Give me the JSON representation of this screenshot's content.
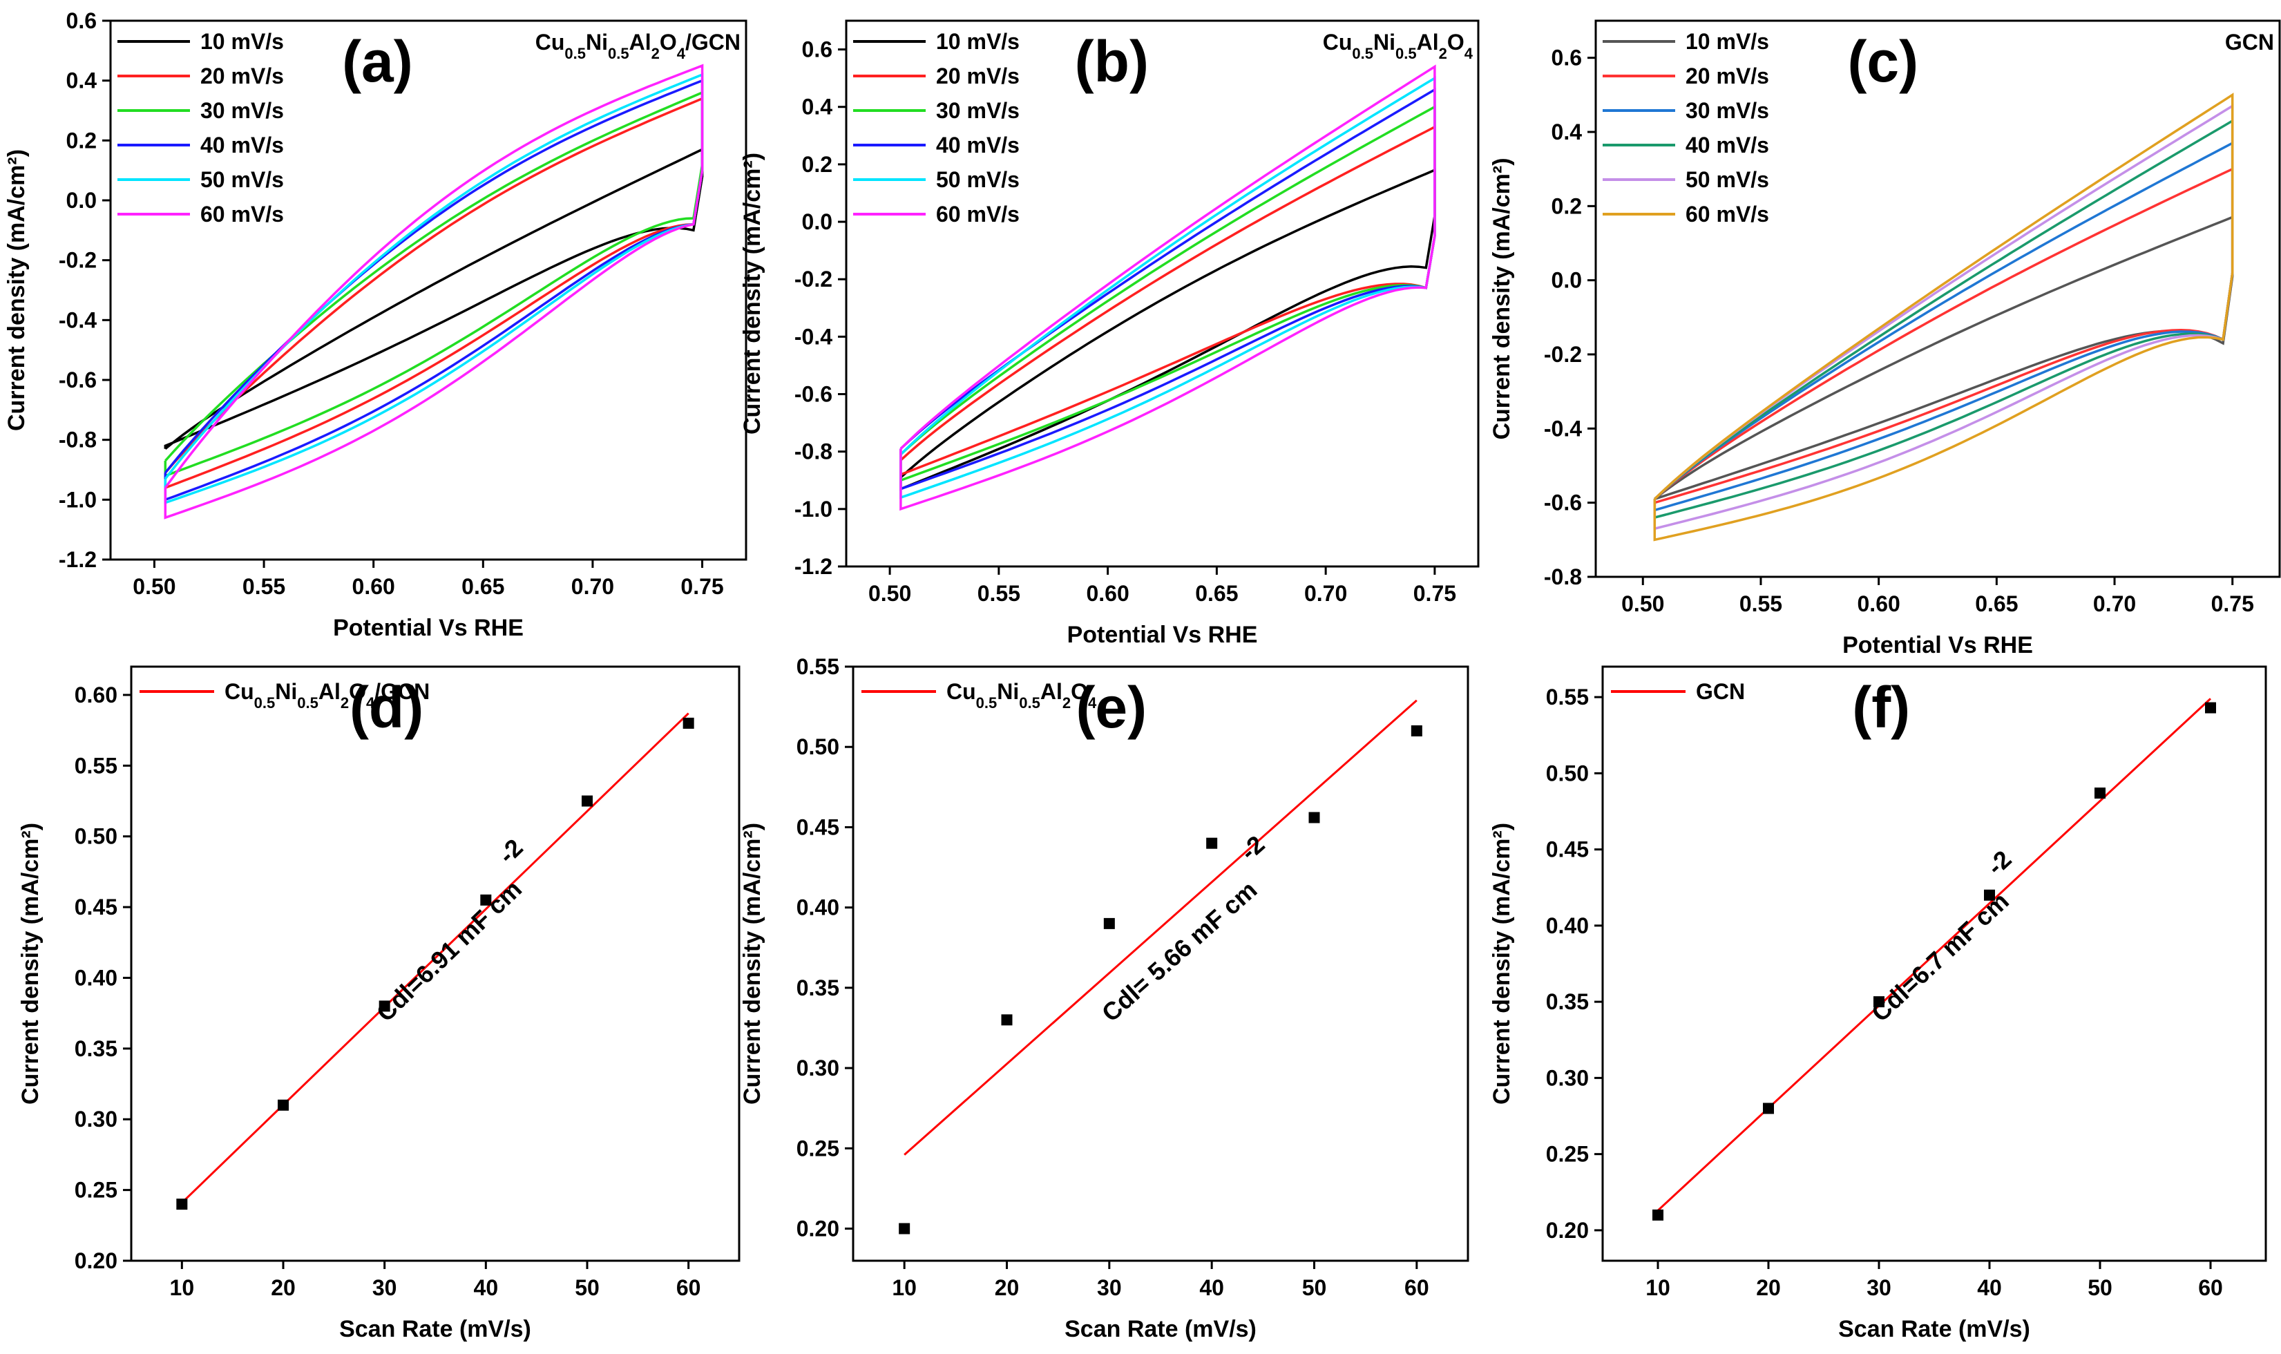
{
  "chart_data": [
    {
      "id": "a",
      "type": "line",
      "panel_label": "(a)",
      "sample_label": "Cu0.5Ni0.5Al2O4/GCN",
      "xlabel": "Potential Vs RHE",
      "ylabel": "Current density (mA/cm²)",
      "xlim": [
        0.48,
        0.77
      ],
      "ylim": [
        -1.2,
        0.6
      ],
      "xticks": [
        "0.50",
        "0.55",
        "0.60",
        "0.65",
        "0.70",
        "0.75"
      ],
      "yticks": [
        "-1.2",
        "-1.0",
        "-0.8",
        "-0.6",
        "-0.4",
        "-0.2",
        "0.0",
        "0.2",
        "0.4",
        "0.6"
      ],
      "legend_position": "top-left",
      "series": [
        {
          "name": "10 mV/s",
          "color": "#000000",
          "x0": 0.505,
          "x1": 0.75,
          "start_low": -0.82,
          "start_high": -0.8,
          "end_high": 0.17,
          "end_low": 0.08,
          "mid_high": -0.28,
          "mid_low": -0.42
        },
        {
          "name": "20 mV/s",
          "color": "#ff2020",
          "x0": 0.505,
          "x1": 0.75,
          "start_low": -0.96,
          "start_high": -0.88,
          "end_high": 0.34,
          "end_low": 0.1,
          "mid_high": -0.12,
          "mid_low": -0.55
        },
        {
          "name": "30 mV/s",
          "color": "#22dd22",
          "x0": 0.505,
          "x1": 0.75,
          "start_low": -0.92,
          "start_high": -0.84,
          "end_high": 0.36,
          "end_low": 0.12,
          "mid_high": -0.1,
          "mid_low": -0.52
        },
        {
          "name": "40 mV/s",
          "color": "#1a1aff",
          "x0": 0.505,
          "x1": 0.75,
          "start_low": -1.0,
          "start_high": -0.88,
          "end_high": 0.4,
          "end_low": 0.1,
          "mid_high": -0.06,
          "mid_low": -0.59
        },
        {
          "name": "50 mV/s",
          "color": "#00e5ff",
          "x0": 0.505,
          "x1": 0.75,
          "start_low": -1.01,
          "start_high": -0.9,
          "end_high": 0.42,
          "end_low": 0.1,
          "mid_high": -0.05,
          "mid_low": -0.61
        },
        {
          "name": "60 mV/s",
          "color": "#ff22ff",
          "x0": 0.505,
          "x1": 0.75,
          "start_low": -1.06,
          "start_high": -0.93,
          "end_high": 0.45,
          "end_low": 0.1,
          "mid_high": -0.02,
          "mid_low": -0.65
        }
      ]
    },
    {
      "id": "b",
      "type": "line",
      "panel_label": "(b)",
      "sample_label": "Cu0.5Ni0.5Al2O4",
      "xlabel": "Potential Vs RHE",
      "ylabel": "Current density (mA/cm²)",
      "xlim": [
        0.48,
        0.77
      ],
      "ylim": [
        -1.2,
        0.7
      ],
      "xticks": [
        "0.50",
        "0.55",
        "0.60",
        "0.65",
        "0.70",
        "0.75"
      ],
      "yticks": [
        "-1.2",
        "-1.0",
        "-0.8",
        "-0.6",
        "-0.4",
        "-0.2",
        "0.0",
        "0.2",
        "0.4",
        "0.6"
      ],
      "legend_position": "top-left",
      "series": [
        {
          "name": "10 mV/s",
          "color": "#000000",
          "x0": 0.505,
          "x1": 0.75,
          "start_low": -0.93,
          "start_high": -0.86,
          "end_high": 0.18,
          "end_low": 0.02,
          "mid_high": -0.26,
          "mid_low": -0.52
        },
        {
          "name": "20 mV/s",
          "color": "#ff2020",
          "x0": 0.505,
          "x1": 0.75,
          "start_low": -0.88,
          "start_high": -0.8,
          "end_high": 0.33,
          "end_low": -0.05,
          "mid_high": -0.18,
          "mid_low": -0.5
        },
        {
          "name": "30 mV/s",
          "color": "#22dd22",
          "x0": 0.505,
          "x1": 0.75,
          "start_low": -0.9,
          "start_high": -0.78,
          "end_high": 0.4,
          "end_low": -0.05,
          "mid_high": -0.14,
          "mid_low": -0.53
        },
        {
          "name": "40 mV/s",
          "color": "#1a1aff",
          "x0": 0.505,
          "x1": 0.75,
          "start_low": -0.93,
          "start_high": -0.76,
          "end_high": 0.46,
          "end_low": -0.05,
          "mid_high": -0.11,
          "mid_low": -0.56
        },
        {
          "name": "50 mV/s",
          "color": "#00e5ff",
          "x0": 0.505,
          "x1": 0.75,
          "start_low": -0.96,
          "start_high": -0.78,
          "end_high": 0.5,
          "end_low": -0.05,
          "mid_high": -0.09,
          "mid_low": -0.59
        },
        {
          "name": "60 mV/s",
          "color": "#ff22ff",
          "x0": 0.505,
          "x1": 0.75,
          "start_low": -1.0,
          "start_high": -0.76,
          "end_high": 0.54,
          "end_low": -0.05,
          "mid_high": -0.07,
          "mid_low": -0.63
        }
      ]
    },
    {
      "id": "c",
      "type": "line",
      "panel_label": "(c)",
      "sample_label": "GCN",
      "xlabel": "Potential Vs RHE",
      "ylabel": "Current density (mA/cm²)",
      "xlim": [
        0.48,
        0.77
      ],
      "ylim": [
        -0.8,
        0.7
      ],
      "xticks": [
        "0.50",
        "0.55",
        "0.60",
        "0.65",
        "0.70",
        "0.75"
      ],
      "yticks": [
        "-0.8",
        "-0.6",
        "-0.4",
        "-0.2",
        "0.0",
        "0.2",
        "0.4",
        "0.6"
      ],
      "legend_position": "top-left",
      "series": [
        {
          "name": "10 mV/s",
          "color": "#555555",
          "x0": 0.505,
          "x1": 0.75,
          "start_low": -0.59,
          "start_high": -0.56,
          "end_high": 0.17,
          "end_low": 0.01,
          "mid_high": -0.16,
          "mid_low": -0.32
        },
        {
          "name": "20 mV/s",
          "color": "#ff3333",
          "x0": 0.505,
          "x1": 0.75,
          "start_low": -0.6,
          "start_high": -0.56,
          "end_high": 0.3,
          "end_low": 0.02,
          "mid_high": -0.09,
          "mid_low": -0.34
        },
        {
          "name": "30 mV/s",
          "color": "#1f77d4",
          "x0": 0.505,
          "x1": 0.75,
          "start_low": -0.62,
          "start_high": -0.56,
          "end_high": 0.37,
          "end_low": 0.02,
          "mid_high": -0.06,
          "mid_low": -0.36
        },
        {
          "name": "40 mV/s",
          "color": "#1a9a6c",
          "x0": 0.505,
          "x1": 0.75,
          "start_low": -0.64,
          "start_high": -0.56,
          "end_high": 0.43,
          "end_low": 0.02,
          "mid_high": -0.04,
          "mid_low": -0.39
        },
        {
          "name": "50 mV/s",
          "color": "#c48fe8",
          "x0": 0.505,
          "x1": 0.75,
          "start_low": -0.67,
          "start_high": -0.56,
          "end_high": 0.47,
          "end_low": 0.02,
          "mid_high": -0.02,
          "mid_low": -0.42
        },
        {
          "name": "60 mV/s",
          "color": "#e0a020",
          "x0": 0.505,
          "x1": 0.75,
          "start_low": -0.7,
          "start_high": -0.56,
          "end_high": 0.5,
          "end_low": 0.02,
          "mid_high": -0.01,
          "mid_low": -0.46
        }
      ]
    },
    {
      "id": "d",
      "type": "scatter",
      "panel_label": "(d)",
      "legend_label": "Cu0.5Ni0.5Al2O4/GCN",
      "annotation": "Cdl=6.91 mF cm",
      "annotation_sup": "-2",
      "xlabel": "Scan Rate (mV/s)",
      "ylabel": "Current density (mA/cm²)",
      "xlim": [
        5,
        65
      ],
      "ylim": [
        0.2,
        0.62
      ],
      "xticks": [
        "10",
        "20",
        "30",
        "40",
        "50",
        "60"
      ],
      "yticks": [
        "0.20",
        "0.25",
        "0.30",
        "0.35",
        "0.40",
        "0.45",
        "0.50",
        "0.55",
        "0.60"
      ],
      "legend_position": "top-left",
      "x": [
        10,
        20,
        30,
        40,
        50,
        60
      ],
      "y": [
        0.24,
        0.31,
        0.38,
        0.455,
        0.525,
        0.58
      ],
      "fit": {
        "x": [
          10,
          60
        ],
        "y": [
          0.241,
          0.587
        ],
        "color": "#ff0000"
      }
    },
    {
      "id": "e",
      "type": "scatter",
      "panel_label": "(e)",
      "legend_label": "Cu0.5Ni0.5Al2O4",
      "annotation": "Cdl= 5.66 mF cm",
      "annotation_sup": "-2",
      "xlabel": "Scan Rate (mV/s)",
      "ylabel": "Current density (mA/cm²)",
      "xlim": [
        5,
        65
      ],
      "ylim": [
        0.18,
        0.55
      ],
      "xticks": [
        "10",
        "20",
        "30",
        "40",
        "50",
        "60"
      ],
      "yticks": [
        "0.20",
        "0.25",
        "0.30",
        "0.35",
        "0.40",
        "0.45",
        "0.50",
        "0.55"
      ],
      "legend_position": "top-left",
      "x": [
        10,
        20,
        30,
        40,
        50,
        60
      ],
      "y": [
        0.2,
        0.33,
        0.39,
        0.44,
        0.456,
        0.51
      ],
      "fit": {
        "x": [
          10,
          60
        ],
        "y": [
          0.246,
          0.529
        ],
        "color": "#ff0000"
      }
    },
    {
      "id": "f",
      "type": "scatter",
      "panel_label": "(f)",
      "legend_label": "GCN",
      "annotation": "Cdl=6.7 mF cm",
      "annotation_sup": "-2",
      "xlabel": "Scan Rate (mV/s)",
      "ylabel": "Current density (mA/cm²)",
      "xlim": [
        5,
        65
      ],
      "ylim": [
        0.18,
        0.57
      ],
      "xticks": [
        "10",
        "20",
        "30",
        "40",
        "50",
        "60"
      ],
      "yticks": [
        "0.20",
        "0.25",
        "0.30",
        "0.35",
        "0.40",
        "0.45",
        "0.50",
        "0.55"
      ],
      "legend_position": "top-left",
      "x": [
        10,
        20,
        30,
        40,
        50,
        60
      ],
      "y": [
        0.21,
        0.28,
        0.35,
        0.42,
        0.487,
        0.543
      ],
      "fit": {
        "x": [
          10,
          60
        ],
        "y": [
          0.213,
          0.549
        ],
        "color": "#ff0000"
      }
    }
  ]
}
